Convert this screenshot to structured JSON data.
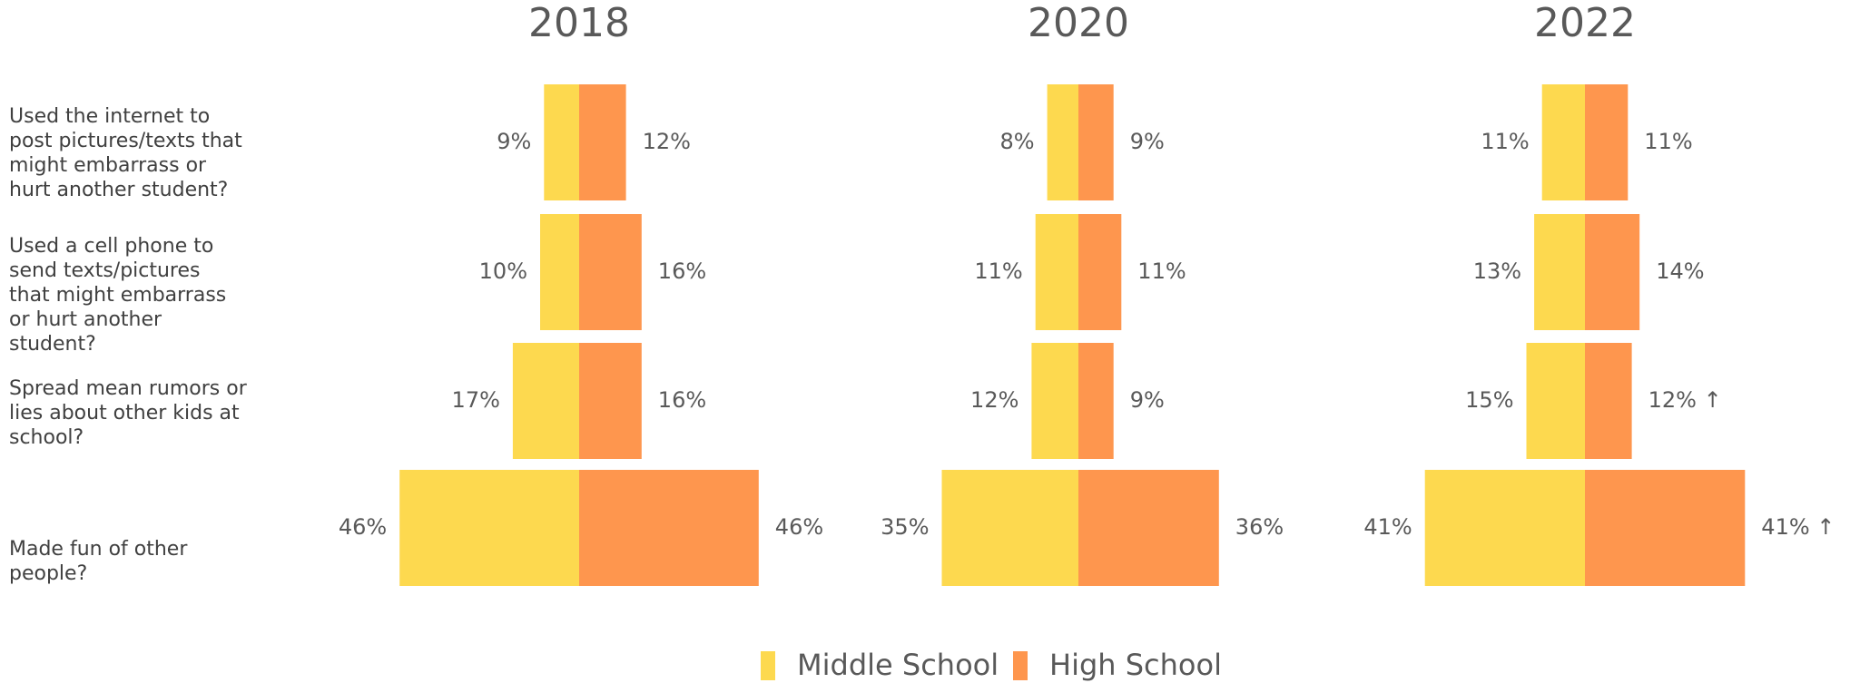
{
  "chart_data": {
    "type": "butterfly",
    "categories": [
      "Used the internet to post pictures/texts that might embarrass or hurt another student?",
      "Used a cell phone to send texts/pictures that might embarrass or hurt another student?",
      "Spread mean rumors or lies about other kids at school?",
      "Made fun of other people?"
    ],
    "series": [
      {
        "name": "Middle School",
        "color": "#fdd94f"
      },
      {
        "name": "High School",
        "color": "#fe964e"
      }
    ],
    "panels": [
      {
        "title": "2018",
        "series": [
          {
            "values": [
              9,
              10,
              17,
              46
            ],
            "value_labels": [
              "9%",
              "10%",
              "17%",
              "46%"
            ]
          },
          {
            "values": [
              12,
              16,
              16,
              46
            ],
            "value_labels": [
              "12%",
              "16%",
              "16%",
              "46%"
            ]
          }
        ]
      },
      {
        "title": "2020",
        "series": [
          {
            "values": [
              8,
              11,
              12,
              35
            ],
            "value_labels": [
              "8%",
              "11%",
              "12%",
              "35%"
            ]
          },
          {
            "values": [
              9,
              11,
              9,
              36
            ],
            "value_labels": [
              "9%",
              "11%",
              "9%",
              "36%"
            ]
          }
        ]
      },
      {
        "title": "2022",
        "series": [
          {
            "values": [
              11,
              13,
              15,
              41
            ],
            "value_labels": [
              "11%",
              "13%",
              "15%",
              "41%"
            ]
          },
          {
            "values": [
              11,
              14,
              12,
              41
            ],
            "value_labels": [
              "11%",
              "14%",
              "12% ↑",
              "41% ↑"
            ]
          }
        ]
      }
    ]
  }
}
